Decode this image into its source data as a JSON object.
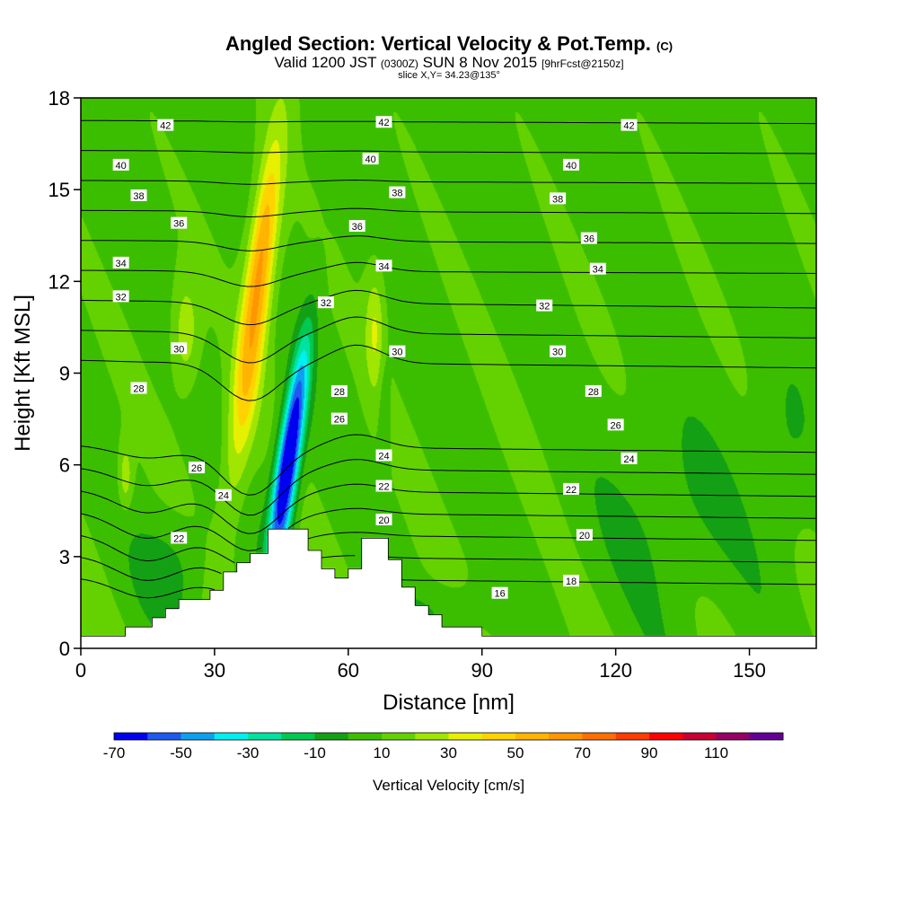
{
  "chart_data": {
    "type": "heatmap",
    "title": "Angled Section: Vertical Velocity & Pot.Temp.",
    "title_mark": "(C)",
    "subtitle": {
      "pre": "Valid 1200 JST",
      "utc": "(0300Z)",
      "date": "SUN 8 Nov 2015",
      "fcst": "[9hrFcst@2150z]"
    },
    "slice_text": "slice X,Y= 34.23@135°",
    "xlabel": "Distance [nm]",
    "ylabel": "Height [Kft MSL]",
    "xlim": [
      0,
      165
    ],
    "ylim": [
      0,
      18
    ],
    "xticks": [
      0,
      30,
      60,
      90,
      120,
      150
    ],
    "yticks": [
      0,
      3,
      6,
      9,
      12,
      15,
      18
    ],
    "colorbar": {
      "label": "Vertical Velocity [cm/s]",
      "levels": [
        -70,
        -60,
        -50,
        -40,
        -30,
        -20,
        -10,
        0,
        10,
        20,
        30,
        40,
        50,
        60,
        70,
        80,
        90,
        100,
        110,
        120
      ],
      "tick_labels": [
        "-70",
        "-50",
        "-30",
        "-10",
        "10",
        "30",
        "50",
        "70",
        "90",
        "110"
      ],
      "colors": [
        "#0000f0",
        "#1e5af0",
        "#0ea0f0",
        "#00f0f0",
        "#00e3a0",
        "#00c850",
        "#14a014",
        "#3cbe00",
        "#64d200",
        "#a0e600",
        "#e6f000",
        "#ffd200",
        "#ffb400",
        "#ff9600",
        "#ff6e00",
        "#ff3c00",
        "#ff0000",
        "#c80032",
        "#960064",
        "#640096"
      ]
    },
    "terrain_kft": [
      [
        0,
        0.4
      ],
      [
        10,
        0.4
      ],
      [
        10,
        0.7
      ],
      [
        16,
        0.7
      ],
      [
        16,
        1.0
      ],
      [
        19,
        1.0
      ],
      [
        19,
        1.3
      ],
      [
        22,
        1.3
      ],
      [
        22,
        1.6
      ],
      [
        29,
        1.6
      ],
      [
        29,
        1.9
      ],
      [
        32,
        1.9
      ],
      [
        32,
        2.5
      ],
      [
        35,
        2.5
      ],
      [
        35,
        2.8
      ],
      [
        38,
        2.8
      ],
      [
        38,
        3.1
      ],
      [
        42,
        3.1
      ],
      [
        42,
        3.9
      ],
      [
        51,
        3.9
      ],
      [
        51,
        3.2
      ],
      [
        54,
        3.2
      ],
      [
        54,
        2.6
      ],
      [
        57,
        2.6
      ],
      [
        57,
        2.3
      ],
      [
        60,
        2.3
      ],
      [
        60,
        2.6
      ],
      [
        63,
        2.6
      ],
      [
        63,
        3.6
      ],
      [
        69,
        3.6
      ],
      [
        69,
        2.9
      ],
      [
        72,
        2.9
      ],
      [
        72,
        2.0
      ],
      [
        75,
        2.0
      ],
      [
        75,
        1.4
      ],
      [
        78,
        1.4
      ],
      [
        78,
        1.1
      ],
      [
        81,
        1.1
      ],
      [
        81,
        0.7
      ],
      [
        90,
        0.7
      ],
      [
        90,
        0.4
      ],
      [
        165,
        0.4
      ]
    ],
    "isentropes_C": [
      {
        "value": "42",
        "labels": [
          [
            19,
            17.1
          ],
          [
            68,
            17.2
          ],
          [
            123,
            17.1
          ]
        ]
      },
      {
        "value": "40",
        "labels": [
          [
            9,
            15.8
          ],
          [
            65,
            16.0
          ],
          [
            110,
            15.8
          ]
        ]
      },
      {
        "value": "38",
        "labels": [
          [
            13,
            14.8
          ],
          [
            71,
            14.9
          ],
          [
            107,
            14.7
          ]
        ]
      },
      {
        "value": "36",
        "labels": [
          [
            22,
            13.9
          ],
          [
            62,
            13.8
          ],
          [
            114,
            13.4
          ]
        ]
      },
      {
        "value": "34",
        "labels": [
          [
            9,
            12.6
          ],
          [
            68,
            12.5
          ],
          [
            116,
            12.4
          ]
        ]
      },
      {
        "value": "32",
        "labels": [
          [
            9,
            11.5
          ],
          [
            55,
            11.3
          ],
          [
            104,
            11.2
          ]
        ]
      },
      {
        "value": "30",
        "labels": [
          [
            22,
            9.8
          ],
          [
            71,
            9.7
          ],
          [
            107,
            9.7
          ]
        ]
      },
      {
        "value": "28",
        "labels": [
          [
            13,
            8.5
          ],
          [
            58,
            8.4
          ],
          [
            115,
            8.4
          ]
        ]
      },
      {
        "value": "26",
        "labels": [
          [
            26,
            5.9
          ],
          [
            58,
            7.5
          ],
          [
            120,
            7.3
          ]
        ]
      },
      {
        "value": "24",
        "labels": [
          [
            32,
            5.0
          ],
          [
            68,
            6.3
          ],
          [
            123,
            6.2
          ]
        ]
      },
      {
        "value": "22",
        "labels": [
          [
            22,
            3.6
          ],
          [
            68,
            5.3
          ],
          [
            110,
            5.2
          ]
        ]
      },
      {
        "value": "20",
        "labels": [
          [
            68,
            4.2
          ],
          [
            113,
            3.7
          ]
        ]
      },
      {
        "value": "18",
        "labels": [
          [
            110,
            2.2
          ]
        ]
      },
      {
        "value": "16",
        "labels": [
          [
            94,
            1.8
          ]
        ]
      }
    ],
    "velocity_features_cms": [
      {
        "kind": "updraft",
        "peak": 60,
        "x_range": [
          33,
          47
        ],
        "z_range": [
          4.5,
          18
        ],
        "axis": [
          [
            34,
            5
          ],
          [
            42,
            11
          ],
          [
            46,
            18
          ]
        ]
      },
      {
        "kind": "downdraft",
        "peak": -70,
        "x_range": [
          33,
          50
        ],
        "z_range": [
          2.7,
          11.5
        ],
        "axis": [
          [
            45,
            4.5
          ],
          [
            52,
            11
          ]
        ]
      },
      {
        "kind": "updraft",
        "peak": 30,
        "x_range": [
          63,
          68
        ],
        "z_range": [
          8.5,
          12.3
        ],
        "axis": [
          [
            66,
            9
          ],
          [
            67,
            12
          ]
        ]
      },
      {
        "kind": "updraft",
        "peak": 30,
        "x_range": [
          20,
          27
        ],
        "z_range": [
          8.6,
          12.1
        ],
        "axis": [
          [
            23,
            9
          ],
          [
            24,
            12
          ]
        ]
      },
      {
        "kind": "updraft",
        "peak": 30,
        "x_range": [
          8,
          12
        ],
        "z_range": [
          4.5,
          6.6
        ],
        "axis": [
          [
            10,
            4.7
          ],
          [
            10,
            6.4
          ]
        ]
      }
    ]
  }
}
